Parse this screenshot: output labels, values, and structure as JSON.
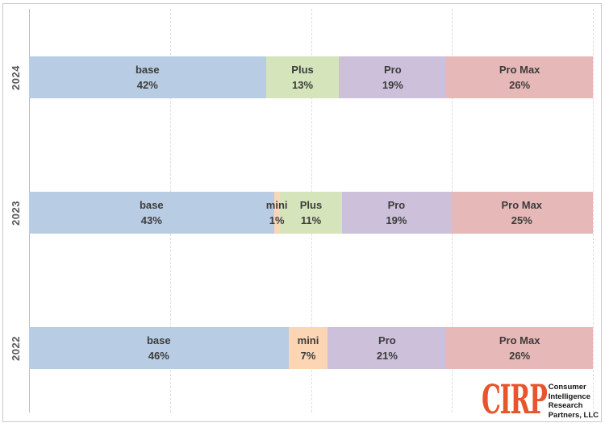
{
  "chart_data": {
    "type": "bar",
    "subtype": "horizontal-100-percent-stacked",
    "title": "",
    "xlabel": "",
    "ylabel": "",
    "xlim": [
      0,
      100
    ],
    "grid": "vertical-dashed",
    "gridlines_percent": [
      25,
      50,
      75,
      100
    ],
    "legend": "none",
    "categories": [
      "2024",
      "2023",
      "2022"
    ],
    "segment_names": [
      "base",
      "mini",
      "Plus",
      "Pro",
      "Pro Max"
    ],
    "series": [
      {
        "year": "2024",
        "segments": [
          {
            "label": "base",
            "value": 42
          },
          {
            "label": "Plus",
            "value": 13
          },
          {
            "label": "Pro",
            "value": 19
          },
          {
            "label": "Pro Max",
            "value": 26
          }
        ]
      },
      {
        "year": "2023",
        "segments": [
          {
            "label": "base",
            "value": 43
          },
          {
            "label": "mini",
            "value": 1
          },
          {
            "label": "Plus",
            "value": 11
          },
          {
            "label": "Pro",
            "value": 19
          },
          {
            "label": "Pro Max",
            "value": 25
          }
        ]
      },
      {
        "year": "2022",
        "segments": [
          {
            "label": "base",
            "value": 46
          },
          {
            "label": "mini",
            "value": 7
          },
          {
            "label": "Pro",
            "value": 21
          },
          {
            "label": "Pro Max",
            "value": 26
          }
        ]
      }
    ],
    "colors": {
      "base": "#b8cce4",
      "mini": "#fcd5b4",
      "Plus": "#d6e4bc",
      "Pro": "#ccc0da",
      "Pro Max": "#e6b9b8"
    },
    "label_text_color": "#3c3c3c",
    "axis_label_color": "#595959"
  },
  "logo": {
    "brand": "CIRP",
    "brand_color": "#e8542c",
    "lines": [
      "Consumer",
      "Intelligence",
      "Research",
      "Partners, LLC"
    ]
  }
}
